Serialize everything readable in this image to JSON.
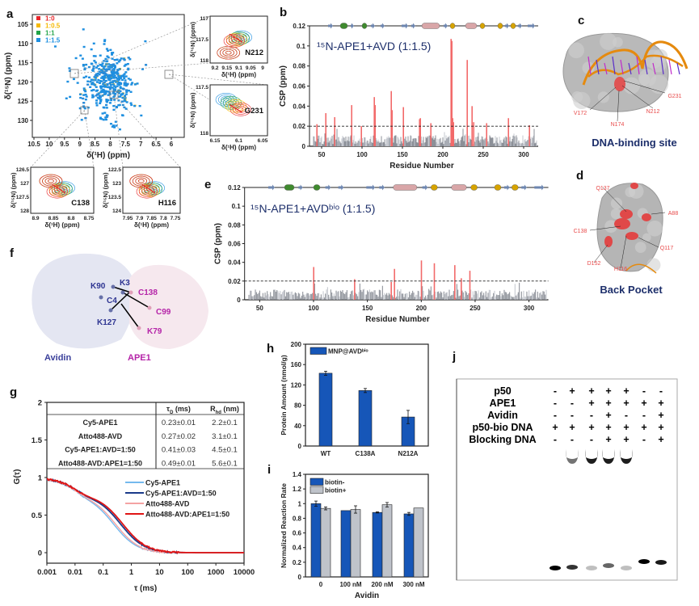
{
  "panel_labels": {
    "a": "a",
    "b": "b",
    "c": "c",
    "d": "d",
    "e": "e",
    "f": "f",
    "g": "g",
    "h": "h",
    "i": "i",
    "j": "j"
  },
  "colors": {
    "red": "#e8262b",
    "yellow": "#f5b800",
    "green": "#21a348",
    "blue": "#1e8fe0",
    "bar_blue": "#1656b8",
    "bar_grey": "#bfc3ca",
    "csp_grey": "#8c9098",
    "csp_red": "#f26a6a",
    "navy": "#1d2f6b"
  },
  "chart_data": [
    {
      "id": "a",
      "type": "scatter",
      "xlabel": "δ(¹H) (ppm)",
      "ylabel": "δ(¹⁵N) (ppm)",
      "xlim": [
        10.5,
        5.7
      ],
      "ylim": [
        134,
        102
      ],
      "xticks": [
        "10.5",
        "10",
        "9.5",
        "9",
        "8.5",
        "8",
        "7.5",
        "7",
        "6.5",
        "6"
      ],
      "yticks": [
        "105",
        "110",
        "115",
        "120",
        "125",
        "130"
      ],
      "legend": [
        {
          "label": "1:0",
          "color": "#e8262b"
        },
        {
          "label": "1:0.5",
          "color": "#f5b800"
        },
        {
          "label": "1:1",
          "color": "#21a348"
        },
        {
          "label": "1:1.5",
          "color": "#1e8fe0"
        }
      ],
      "insets": [
        {
          "residue": "N212",
          "xticks": [
            "9.2",
            "9.15",
            "9.1",
            "9.05",
            "9"
          ],
          "yticks": [
            "117",
            "117.5",
            "118"
          ],
          "xlabel": "δ(¹H) (ppm)",
          "ylabel": "δ(¹⁵N) (ppm)"
        },
        {
          "residue": "G231",
          "xticks": [
            "6.15",
            "6.1",
            "6.05"
          ],
          "yticks": [
            "117.5",
            "118"
          ],
          "xlabel": "δ(¹H) (ppm)",
          "ylabel": "δ(¹⁵N) (ppm)"
        },
        {
          "residue": "C138",
          "xticks": [
            "8.9",
            "8.85",
            "8.8",
            "8.75"
          ],
          "yticks": [
            "126.5",
            "127",
            "127.5",
            "128"
          ],
          "xlabel": "δ(¹H) (ppm)",
          "ylabel": "δ(¹⁵N) (ppm)"
        },
        {
          "residue": "H116",
          "xticks": [
            "7.95",
            "7.9",
            "7.85",
            "7.8",
            "7.75"
          ],
          "yticks": [
            "122.5",
            "123",
            "123.5",
            "124"
          ],
          "xlabel": "δ(¹H) (ppm)",
          "ylabel": "δ(¹⁵N) (ppm)"
        }
      ]
    },
    {
      "id": "b",
      "type": "bar",
      "title": "¹⁵N-APE1+AVD (1:1.5)",
      "xlabel": "Residue Number",
      "ylabel": "CSP (ppm)",
      "xlim": [
        35,
        318
      ],
      "ylim": [
        0,
        0.12
      ],
      "threshold": 0.02,
      "xticks": [
        50,
        100,
        150,
        200,
        250,
        300
      ],
      "yticks": [
        "0",
        "0.02",
        "0.04",
        "0.06",
        "0.08",
        "0.1",
        "0.12"
      ],
      "highlighted": [
        {
          "residue": 44,
          "csp": 0.022
        },
        {
          "residue": 55,
          "csp": 0.033
        },
        {
          "residue": 66,
          "csp": 0.029
        },
        {
          "residue": 87,
          "csp": 0.041
        },
        {
          "residue": 99,
          "csp": 0.02
        },
        {
          "residue": 115,
          "csp": 0.049
        },
        {
          "residue": 116,
          "csp": 0.041
        },
        {
          "residue": 136,
          "csp": 0.055
        },
        {
          "residue": 137,
          "csp": 0.036
        },
        {
          "residue": 151,
          "csp": 0.039
        },
        {
          "residue": 171,
          "csp": 0.027
        },
        {
          "residue": 172,
          "csp": 0.028
        },
        {
          "residue": 185,
          "csp": 0.023
        },
        {
          "residue": 210,
          "csp": 0.107
        },
        {
          "residue": 211,
          "csp": 0.105
        },
        {
          "residue": 212,
          "csp": 0.028
        },
        {
          "residue": 213,
          "csp": 0.024
        },
        {
          "residue": 230,
          "csp": 0.086
        },
        {
          "residue": 236,
          "csp": 0.04
        },
        {
          "residue": 238,
          "csp": 0.024
        },
        {
          "residue": 254,
          "csp": 0.023
        },
        {
          "residue": 281,
          "csp": 0.028
        },
        {
          "residue": 307,
          "csp": 0.021
        }
      ]
    },
    {
      "id": "e",
      "type": "bar",
      "title": "¹⁵N-APE1+AVDᵇⁱᵒ (1:1.5)",
      "xlabel": "Residue Number",
      "ylabel": "CSP (ppm)",
      "xlim": [
        36,
        318
      ],
      "ylim": [
        0,
        0.12
      ],
      "threshold": 0.02,
      "xticks": [
        50,
        100,
        150,
        200,
        250,
        300
      ],
      "yticks": [
        "0",
        "0.02",
        "0.04",
        "0.06",
        "0.08",
        "0.1",
        "0.12"
      ],
      "highlighted": [
        {
          "residue": 100,
          "csp": 0.035
        },
        {
          "residue": 138,
          "csp": 0.022
        },
        {
          "residue": 172,
          "csp": 0.019
        },
        {
          "residue": 175,
          "csp": 0.033
        },
        {
          "residue": 200,
          "csp": 0.042
        },
        {
          "residue": 212,
          "csp": 0.039
        },
        {
          "residue": 231,
          "csp": 0.037
        },
        {
          "residue": 237,
          "csp": 0.023
        },
        {
          "residue": 245,
          "csp": 0.031
        }
      ]
    },
    {
      "id": "g",
      "type": "line",
      "xlabel": {
        "sym": "τ",
        "unit": " (ms)"
      },
      "ylabel": "G(τ)",
      "xscale": "log",
      "xlim": [
        0.001,
        10000
      ],
      "ylim": [
        -0.1,
        2
      ],
      "xticks": [
        "0.001",
        "0.01",
        "0.1",
        "1",
        "10",
        "100",
        "1000",
        "10000"
      ],
      "yticks": [
        "0",
        "0.5",
        "1",
        "1.5",
        "2"
      ],
      "table": {
        "headers": [
          {
            "sym": "τ",
            "sub": "D",
            "unit": " (ms)"
          },
          {
            "sym": "R",
            "sub": "hd",
            "unit": " (nm)"
          }
        ],
        "rows": [
          {
            "name": "Cy5-APE1",
            "tauD": "0.23±0.01",
            "rhd": "2.2±0.1"
          },
          {
            "name": "Atto488-AVD",
            "tauD": "0.27±0.02",
            "rhd": "3.1±0.1"
          },
          {
            "name": "Cy5-APE1:AVD=1:50",
            "tauD": "0.41±0.03",
            "rhd": "4.5±0.1"
          },
          {
            "name": "Atto488-AVD:APE1=1:50",
            "tauD": "0.49±0.01",
            "rhd": "5.6±0.1"
          }
        ]
      },
      "series": [
        {
          "name": "Cy5-APE1",
          "color": "#74b9ee",
          "tauD": 0.23
        },
        {
          "name": "Cy5-APE1:AVD=1:50",
          "color": "#1a3a8a",
          "tauD": 0.41
        },
        {
          "name": "Atto488-AVD",
          "color": "#f4a3a3",
          "tauD": 0.27
        },
        {
          "name": "Atto488-AVD:APE1=1:50",
          "color": "#e01414",
          "tauD": 0.49
        }
      ]
    },
    {
      "id": "h",
      "type": "bar",
      "ylabel": "Protein Amount (nmol/g)",
      "ylim": [
        0,
        200
      ],
      "yticks": [
        "0",
        "40",
        "80",
        "120",
        "160",
        "200"
      ],
      "categories": [
        "WT",
        "C138A",
        "N212A"
      ],
      "series": [
        {
          "name": "MNP@AVDᵇⁱᵒ",
          "values": [
            143,
            109,
            57
          ],
          "errors": [
            4,
            4,
            13
          ],
          "color": "#1656b8"
        }
      ]
    },
    {
      "id": "i",
      "type": "bar",
      "xlabel": "Avidin",
      "ylabel": "Normalized Reaction Rate",
      "ylim": [
        0,
        1.4
      ],
      "yticks": [
        "0",
        "0.2",
        "0.4",
        "0.6",
        "0.8",
        "1",
        "1.2",
        "1.4"
      ],
      "categories": [
        "0",
        "100 nM",
        "200 nM",
        "300 nM"
      ],
      "series": [
        {
          "name": "biotin-",
          "values": [
            1.0,
            0.905,
            0.88,
            0.86
          ],
          "errors": [
            0.035,
            0,
            0.008,
            0.02
          ],
          "color": "#1656b8"
        },
        {
          "name": "biotin+",
          "values": [
            0.935,
            0.92,
            0.985,
            0.94
          ],
          "errors": [
            0.02,
            0.05,
            0.03,
            0
          ],
          "color": "#bfc3ca"
        }
      ]
    }
  ],
  "structure_c": {
    "labels": [
      "G231",
      "V172",
      "N174",
      "N212"
    ],
    "caption": "DNA-binding site"
  },
  "structure_d": {
    "labels": [
      "Q137",
      "A88",
      "C138",
      "Q117",
      "D152",
      "H116"
    ],
    "caption": "Back Pocket"
  },
  "structure_f": {
    "avidin_residues": [
      "K90",
      "K3",
      "C4",
      "K127"
    ],
    "ape1_residues": [
      "C138",
      "C99",
      "K79"
    ],
    "avidin_label": "Avidin",
    "ape1_label": "APE1"
  },
  "gel": {
    "rows": [
      {
        "label": "p50",
        "signs": [
          "-",
          "+",
          "+",
          "+",
          "+",
          "-",
          "-"
        ]
      },
      {
        "label": "APE1",
        "signs": [
          "-",
          "-",
          "+",
          "+",
          "+",
          "+",
          "+"
        ]
      },
      {
        "label": "Avidin",
        "signs": [
          "-",
          "-",
          "-",
          "+",
          "-",
          "-",
          "+"
        ]
      },
      {
        "label": "p50-bio DNA",
        "signs": [
          "+",
          "+",
          "+",
          "+",
          "+",
          "+",
          "+"
        ]
      },
      {
        "label": "Blocking DNA",
        "signs": [
          "-",
          "-",
          "-",
          "+",
          "+",
          "-",
          "+"
        ]
      }
    ]
  }
}
